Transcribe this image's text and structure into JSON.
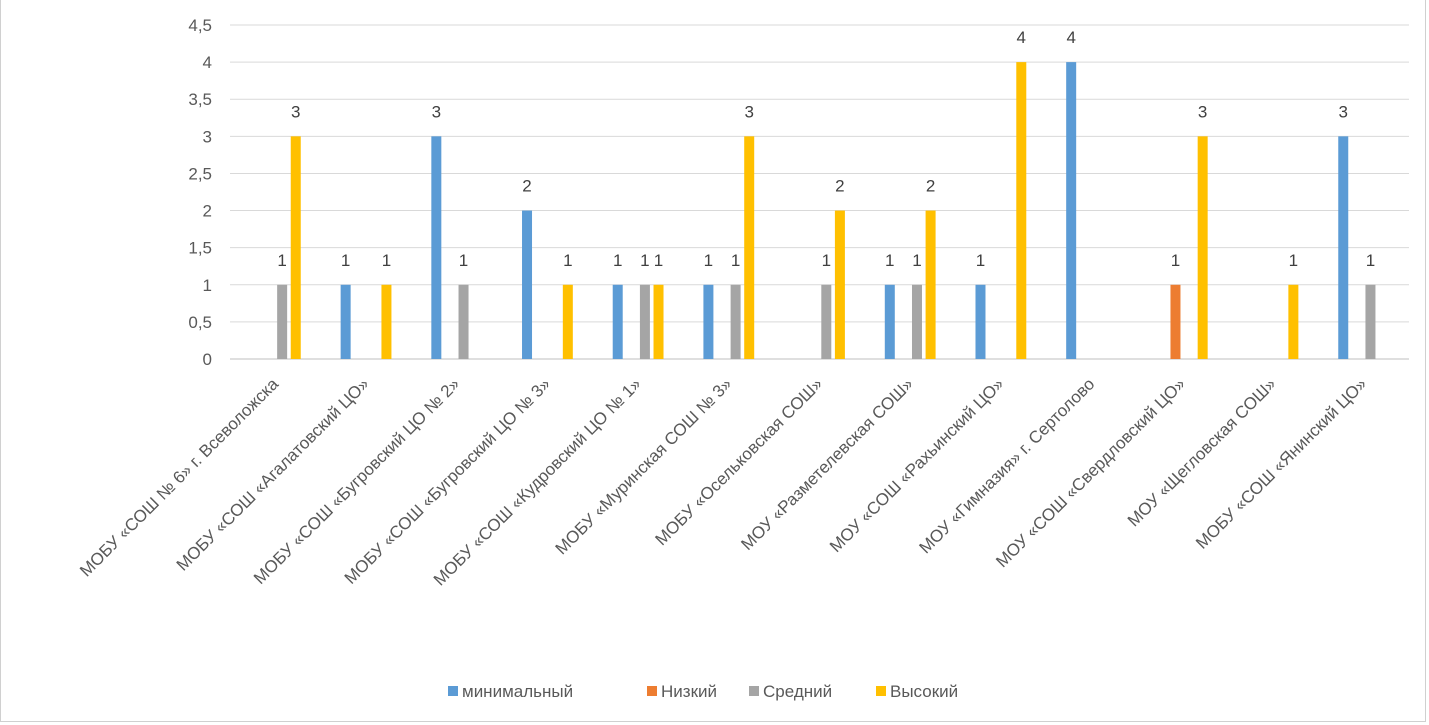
{
  "chart_data": {
    "type": "bar",
    "categories": [
      "МОБУ «СОШ № 6» г. Всеволожска",
      "МОБУ «СОШ «Агалатовский ЦО»",
      "МОБУ «СОШ «Бугровский ЦО № 2»",
      "МОБУ «СОШ «Бугровский ЦО № 3»",
      "МОБУ «СОШ «Кудровский ЦО № 1»",
      "МОБУ «Муринская СОШ № 3»",
      "МОБУ «Осельковская СОШ»",
      "МОУ «Разметелевская СОШ»",
      "МОУ «СОШ «Рахьинский ЦО»",
      "МОУ «Гимназия» г. Сертолово",
      "МОУ «СОШ «Свердловский ЦО»",
      "МОУ «Щегловская СОШ»",
      "МОБУ «СОШ «Янинский ЦО»"
    ],
    "series": [
      {
        "name": "минимальный",
        "color": "#5B9BD5",
        "values": [
          0,
          1,
          3,
          2,
          1,
          1,
          0,
          1,
          1,
          4,
          0,
          0,
          3
        ]
      },
      {
        "name": "Низкий",
        "color": "#ED7D31",
        "values": [
          0,
          0,
          0,
          0,
          0,
          0,
          0,
          0,
          0,
          0,
          1,
          0,
          0
        ]
      },
      {
        "name": "Средний",
        "color": "#A5A5A5",
        "values": [
          1,
          0,
          1,
          0,
          1,
          1,
          1,
          1,
          0,
          0,
          0,
          0,
          1
        ]
      },
      {
        "name": "Высокий",
        "color": "#FFC000",
        "values": [
          3,
          1,
          0,
          1,
          1,
          3,
          2,
          2,
          4,
          0,
          3,
          1,
          0
        ]
      }
    ],
    "yticks": [
      "0",
      "0,5",
      "1",
      "1,5",
      "2",
      "2,5",
      "3",
      "3,5",
      "4",
      "4,5"
    ],
    "ylim": [
      0,
      4.5
    ],
    "ystep": 0.5,
    "grid": true,
    "legend_position": "bottom",
    "title": "",
    "xlabel": "",
    "ylabel": ""
  }
}
